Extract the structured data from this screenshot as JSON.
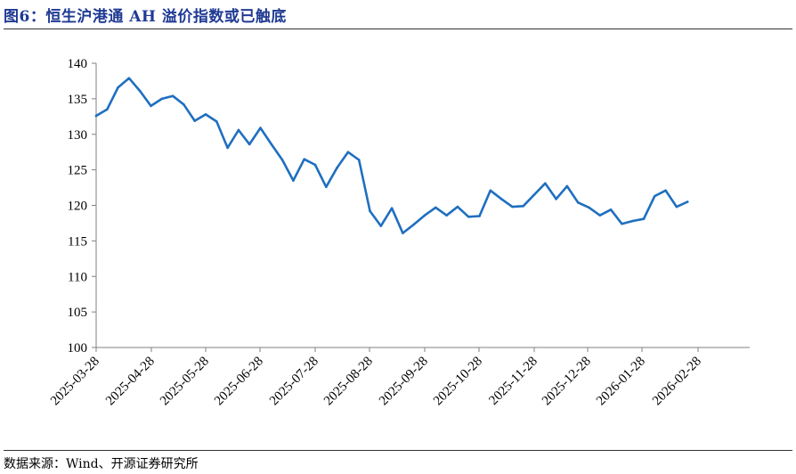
{
  "header": {
    "title": "图6：恒生沪港通 AH 溢价指数或已触底"
  },
  "footer": {
    "source": "数据来源：Wind、开源证券研究所"
  },
  "chart_data": {
    "type": "line",
    "title": "图6：恒生沪港通 AH 溢价指数或已触底",
    "xlabel": "",
    "ylabel": "",
    "ylim": [
      100,
      140
    ],
    "yticks": [
      "100",
      "105",
      "110",
      "115",
      "120",
      "125",
      "130",
      "135",
      "140"
    ],
    "xtick_labels": [
      "2025-03-28",
      "2025-04-28",
      "2025-05-28",
      "2025-06-28",
      "2025-07-28",
      "2025-08-28",
      "2025-09-28",
      "2025-10-28",
      "2025-11-28",
      "2025-12-28",
      "2026-01-28",
      "2026-02-28"
    ],
    "grid": false,
    "legend": "none",
    "line_color": "#1f6fbf",
    "series": [
      {
        "values": [
          132.6,
          133.5,
          136.6,
          137.9,
          136.1,
          134.0,
          135.0,
          135.4,
          134.2,
          131.9,
          132.8,
          131.8,
          128.1,
          130.6,
          128.6,
          130.9,
          128.6,
          126.4,
          123.5,
          126.5,
          125.7,
          122.6,
          125.3,
          127.5,
          126.4,
          119.2,
          117.1,
          119.6,
          116.1,
          117.3,
          118.6,
          119.7,
          118.6,
          119.8,
          118.4,
          118.5,
          122.1,
          120.9,
          119.8,
          119.9,
          121.5,
          123.1,
          120.9,
          122.7,
          120.4,
          119.7,
          118.6,
          119.4,
          117.4,
          117.8,
          118.1,
          121.3,
          122.1,
          119.8,
          120.5
        ]
      }
    ]
  }
}
